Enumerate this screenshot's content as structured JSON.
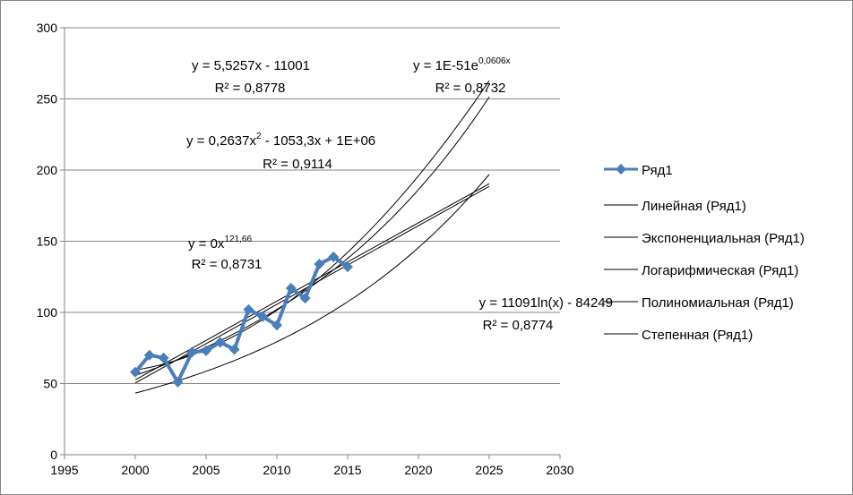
{
  "chart_data": {
    "type": "scatter",
    "title": "",
    "xlabel": "",
    "ylabel": "",
    "xlim": [
      1995,
      2030
    ],
    "ylim": [
      0,
      300
    ],
    "x_ticks": [
      1995,
      2000,
      2005,
      2010,
      2015,
      2020,
      2025,
      2030
    ],
    "y_ticks": [
      0,
      50,
      100,
      150,
      200,
      250,
      300
    ],
    "grid": "horizontal",
    "legend_position": "right",
    "colors": {
      "series": "#4a7ebb",
      "trendline": "#000000",
      "grid": "#868686"
    },
    "series": [
      {
        "name": "Ряд1",
        "x": [
          2000,
          2001,
          2002,
          2003,
          2004,
          2005,
          2006,
          2007,
          2008,
          2009,
          2010,
          2011,
          2012,
          2013,
          2014,
          2015
        ],
        "y": [
          58,
          70,
          68,
          51,
          72,
          73,
          79,
          74,
          102,
          97,
          91,
          117,
          110,
          134,
          139,
          132
        ]
      }
    ],
    "trendlines": [
      {
        "name": "Линейная (Ряд1)",
        "type": "linear",
        "equation": "y = 5,5257x - 11001",
        "r2": "R² = 0,8778",
        "x_range": [
          2000,
          2025
        ],
        "a": 5.5257,
        "b": -11001
      },
      {
        "name": "Экспоненциальная (Ряд1)",
        "type": "exponential",
        "equation_base": "y = 1E-51e",
        "equation_exp": "0,0606x",
        "r2": "R² = 0,8732",
        "x_range": [
          2000,
          2025
        ],
        "a": 1e-51,
        "k": 0.0606
      },
      {
        "name": "Логарифмическая (Ряд1)",
        "type": "logarithmic",
        "equation": "y = 11091ln(x) - 84249",
        "r2": "R² = 0,8774",
        "x_range": [
          2000,
          2025
        ],
        "a": 11091,
        "b": -84249
      },
      {
        "name": "Полиномиальная (Ряд1)",
        "type": "polynomial",
        "equation_pre": "y = 0,2637x",
        "equation_sup": "2",
        "equation_post": " - 1053,3x + 1E+06",
        "r2": "R² = 0,9114",
        "x_range": [
          2000,
          2025
        ]
      },
      {
        "name": "Степенная (Ряд1)",
        "type": "power",
        "equation_base": "y = 0x",
        "equation_exp": "121,66",
        "r2": "R² = 0,8731",
        "x_range": [
          2000,
          2025
        ]
      }
    ]
  }
}
